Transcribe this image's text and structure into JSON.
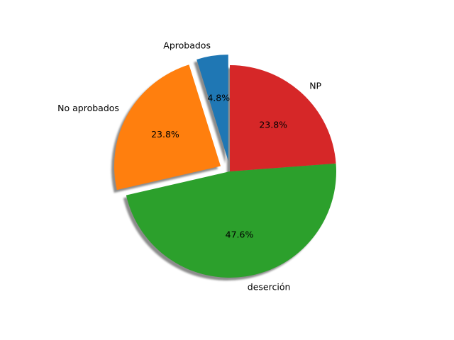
{
  "chart_data": {
    "type": "pie",
    "title": "",
    "start_angle_deg": 90,
    "direction": "counterclockwise",
    "shadow": true,
    "slices": [
      {
        "label": "Aprobados",
        "value": 4.8,
        "pct_label": "4.8%",
        "color": "#1f77b4",
        "exploded": true
      },
      {
        "label": "No aprobados",
        "value": 23.8,
        "pct_label": "23.8%",
        "color": "#ff7f0e",
        "exploded": true
      },
      {
        "label": "deserción",
        "value": 47.6,
        "pct_label": "47.6%",
        "color": "#2ca02c",
        "exploded": false
      },
      {
        "label": "NP",
        "value": 23.8,
        "pct_label": "23.8%",
        "color": "#d62728",
        "exploded": false
      }
    ]
  }
}
